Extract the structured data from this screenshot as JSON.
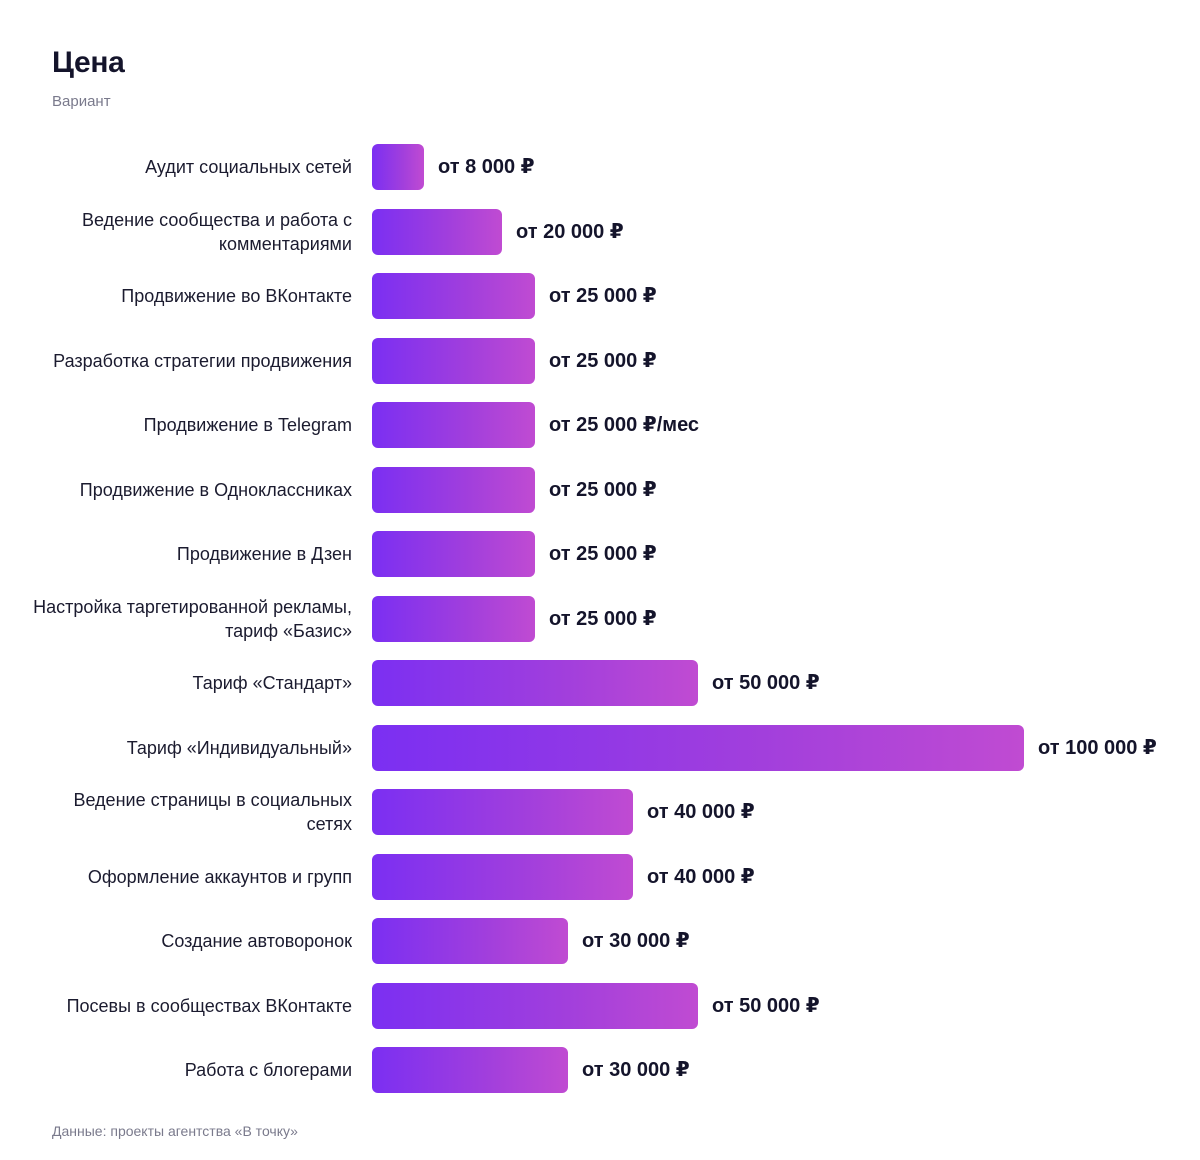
{
  "chart_data": {
    "type": "bar",
    "orientation": "horizontal",
    "title": "Цена",
    "subtitle": "Вариант",
    "source": "Данные: проекты агентства «В точку»",
    "categories": [
      "Аудит социальных сетей",
      "Ведение сообщества и работа с комментариями",
      "Продвижение во ВКонтакте",
      "Разработка стратегии продвижения",
      "Продвижение в Telegram",
      "Продвижение в Одноклассниках",
      "Продвижение в Дзен",
      "Настройка таргетированной рекламы, тариф «Базис»",
      "Тариф «Стандарт»",
      "Тариф «Индивидуальный»",
      "Ведение страницы в социальных сетях",
      "Оформление аккаунтов и групп",
      "Создание автоворонок",
      "Посевы в сообществах ВКонтакте",
      "Работа с блогерами"
    ],
    "values": [
      8000,
      20000,
      25000,
      25000,
      25000,
      25000,
      25000,
      25000,
      50000,
      100000,
      40000,
      40000,
      30000,
      50000,
      30000
    ],
    "value_labels": [
      "от 8 000 ₽",
      "от 20 000 ₽",
      "от 25 000 ₽",
      "от 25 000 ₽",
      "от 25 000 ₽/мес",
      "от 25 000 ₽",
      "от 25 000 ₽",
      "от 25 000 ₽",
      "от 50 000 ₽",
      "от 100 000 ₽",
      "от 40 000 ₽",
      "от 40 000 ₽",
      "от 30 000 ₽",
      "от 50 000 ₽",
      "от 30 000 ₽"
    ],
    "xlim": [
      0,
      100000
    ],
    "grid": false,
    "colors": {
      "bar_gradient_start": "#7b2ff2",
      "bar_gradient_end": "#c04bd2"
    }
  }
}
